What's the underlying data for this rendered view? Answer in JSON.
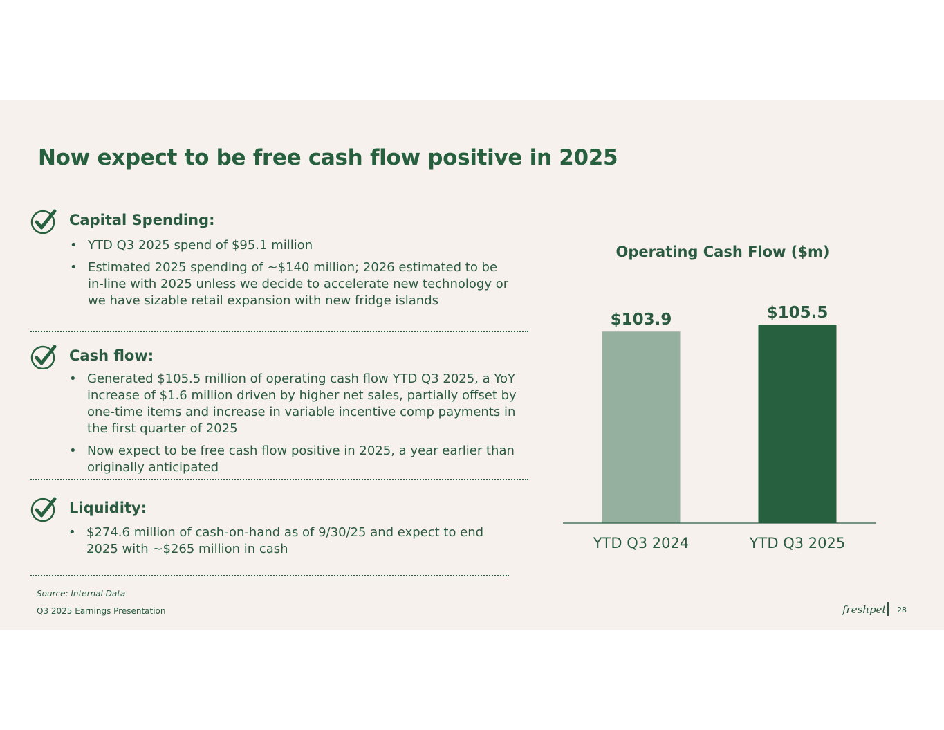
{
  "slide": {
    "title": "Now expect to be free cash flow positive in 2025"
  },
  "sections": [
    {
      "heading": "Capital Spending:",
      "bullets": [
        "YTD Q3 2025 spend of $95.1 million",
        "Estimated 2025 spending of ~$140 million; 2026 estimated to be in-line with 2025 unless we decide to accelerate new technology or we have sizable retail expansion with new fridge islands"
      ]
    },
    {
      "heading": "Cash flow:",
      "bullets": [
        "Generated $105.5 million of operating cash flow YTD Q3 2025, a YoY increase of $1.6 million driven by higher net sales, partially offset by one-time items and increase in variable incentive comp payments in the first quarter of 2025",
        "Now expect to be free cash flow positive in 2025, a year earlier than originally anticipated"
      ]
    },
    {
      "heading": "Liquidity:",
      "bullets": [
        "$274.6 million of cash-on-hand as of 9/30/25 and expect to end 2025 with ~$265 million in cash"
      ]
    }
  ],
  "bullet_glyph": "•",
  "chart_data": {
    "type": "bar",
    "title": "Operating Cash Flow ($m)",
    "categories": [
      "YTD Q3 2024",
      "YTD Q3 2025"
    ],
    "values": [
      103.9,
      105.5
    ],
    "data_labels": [
      "$103.9",
      "$105.5"
    ],
    "colors": [
      "#95b09f",
      "#27603f"
    ],
    "ylim": [
      60,
      106
    ]
  },
  "footer": {
    "source": "Source: Internal Data",
    "presentation": "Q3 2025 Earnings Presentation",
    "logo_text": "freshpet",
    "page_number": "28"
  },
  "colors": {
    "brand_green": "#27603f",
    "slide_background": "#f6f1ed",
    "text": "#2a5a40"
  },
  "icons": {
    "section_marker": "check-circle-icon"
  }
}
